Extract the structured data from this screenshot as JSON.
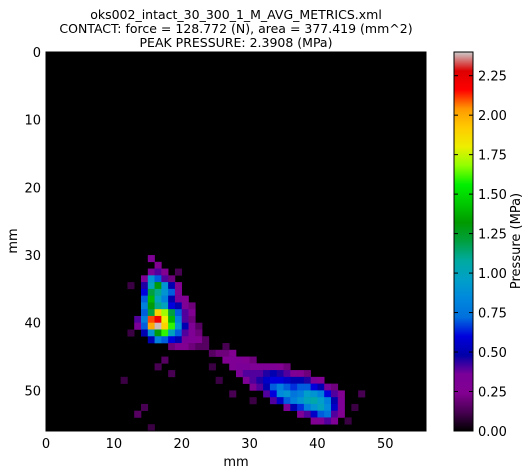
{
  "chart_data": {
    "type": "heatmap",
    "title_lines": [
      "oks002_intact_30_300_1_M_AVG_METRICS.xml",
      "CONTACT: force = 128.772 (N), area = 377.419 (mm^2)",
      "PEAK PRESSURE: 2.3908 (MPa)"
    ],
    "xlabel": "mm",
    "ylabel": "mm",
    "colorbar_label": "Pressure (MPa)",
    "colormap": "nipy_spectral",
    "xlim": [
      0,
      56
    ],
    "ylim": [
      0,
      56
    ],
    "y_inverted": true,
    "x_ticks": [
      0,
      10,
      20,
      30,
      40,
      50
    ],
    "y_ticks": [
      0,
      10,
      20,
      30,
      40,
      50
    ],
    "x_tick_labels": [
      "0",
      "10",
      "20",
      "30",
      "40",
      "50"
    ],
    "y_tick_labels": [
      "0",
      "10",
      "20",
      "30",
      "40",
      "50"
    ],
    "color_range": [
      0,
      2.4
    ],
    "colorbar_ticks": [
      0.0,
      0.25,
      0.5,
      0.75,
      1.0,
      1.25,
      1.5,
      1.75,
      2.0,
      2.25
    ],
    "colorbar_tick_labels": [
      "0.00",
      "0.25",
      "0.50",
      "0.75",
      "1.00",
      "1.25",
      "1.50",
      "1.75",
      "2.00",
      "2.25"
    ],
    "peak_pressure": 2.3908,
    "cells": [
      [
        15,
        30,
        0.3
      ],
      [
        16,
        31,
        0.25
      ],
      [
        15,
        32,
        0.35
      ],
      [
        16,
        32,
        0.4
      ],
      [
        17,
        32,
        0.25
      ],
      [
        14,
        33,
        0.3
      ],
      [
        15,
        33,
        0.9
      ],
      [
        16,
        33,
        0.7
      ],
      [
        17,
        33,
        0.4
      ],
      [
        18,
        33,
        0.2
      ],
      [
        14,
        34,
        0.45
      ],
      [
        15,
        34,
        1.0
      ],
      [
        16,
        34,
        1.3
      ],
      [
        17,
        34,
        0.9
      ],
      [
        18,
        34,
        0.5
      ],
      [
        19,
        34,
        0.25
      ],
      [
        14,
        35,
        0.6
      ],
      [
        15,
        35,
        1.2
      ],
      [
        16,
        35,
        1.1
      ],
      [
        17,
        35,
        0.9
      ],
      [
        18,
        35,
        0.7
      ],
      [
        19,
        35,
        0.3
      ],
      [
        14,
        36,
        0.7
      ],
      [
        15,
        36,
        1.4
      ],
      [
        16,
        36,
        1.0
      ],
      [
        17,
        36,
        0.8
      ],
      [
        18,
        36,
        0.5
      ],
      [
        19,
        36,
        0.35
      ],
      [
        20,
        36,
        0.25
      ],
      [
        14,
        37,
        0.8
      ],
      [
        15,
        37,
        1.3
      ],
      [
        16,
        37,
        1.1
      ],
      [
        17,
        37,
        1.0
      ],
      [
        18,
        37,
        0.6
      ],
      [
        19,
        37,
        0.5
      ],
      [
        20,
        37,
        0.3
      ],
      [
        21,
        37,
        0.2
      ],
      [
        14,
        38,
        0.7
      ],
      [
        15,
        38,
        1.2
      ],
      [
        16,
        38,
        1.9
      ],
      [
        17,
        38,
        1.7
      ],
      [
        18,
        38,
        1.2
      ],
      [
        19,
        38,
        0.7
      ],
      [
        20,
        38,
        0.4
      ],
      [
        21,
        38,
        0.25
      ],
      [
        13,
        39,
        0.4
      ],
      [
        14,
        39,
        0.8
      ],
      [
        15,
        39,
        2.1
      ],
      [
        16,
        39,
        2.2
      ],
      [
        17,
        39,
        1.8
      ],
      [
        18,
        39,
        1.4
      ],
      [
        19,
        39,
        0.8
      ],
      [
        20,
        39,
        0.4
      ],
      [
        21,
        39,
        0.2
      ],
      [
        13,
        40,
        0.35
      ],
      [
        14,
        40,
        0.7
      ],
      [
        15,
        40,
        2.0
      ],
      [
        16,
        40,
        2.39
      ],
      [
        17,
        40,
        1.9
      ],
      [
        18,
        40,
        1.6
      ],
      [
        19,
        40,
        0.9
      ],
      [
        20,
        40,
        0.5
      ],
      [
        21,
        40,
        0.3
      ],
      [
        22,
        40,
        0.15
      ],
      [
        14,
        41,
        0.5
      ],
      [
        15,
        41,
        0.9
      ],
      [
        16,
        41,
        1.3
      ],
      [
        17,
        41,
        1.6
      ],
      [
        18,
        41,
        1.0
      ],
      [
        19,
        41,
        0.7
      ],
      [
        20,
        41,
        0.4
      ],
      [
        21,
        41,
        0.3
      ],
      [
        22,
        41,
        0.2
      ],
      [
        15,
        42,
        0.5
      ],
      [
        16,
        42,
        0.8
      ],
      [
        17,
        42,
        0.7
      ],
      [
        18,
        42,
        0.6
      ],
      [
        19,
        42,
        0.5
      ],
      [
        20,
        42,
        0.35
      ],
      [
        21,
        42,
        0.3
      ],
      [
        22,
        42,
        0.25
      ],
      [
        23,
        42,
        0.15
      ],
      [
        18,
        43,
        0.2
      ],
      [
        19,
        43,
        0.25
      ],
      [
        20,
        43,
        0.25
      ],
      [
        21,
        43,
        0.2
      ],
      [
        22,
        43,
        0.15
      ],
      [
        23,
        43,
        0.15
      ],
      [
        24,
        44,
        0.15
      ],
      [
        25,
        44,
        0.2
      ],
      [
        26,
        44,
        0.2
      ],
      [
        27,
        44,
        0.25
      ],
      [
        26,
        45,
        0.25
      ],
      [
        27,
        45,
        0.3
      ],
      [
        28,
        45,
        0.3
      ],
      [
        29,
        45,
        0.25
      ],
      [
        30,
        45,
        0.2
      ],
      [
        27,
        46,
        0.3
      ],
      [
        28,
        46,
        0.35
      ],
      [
        29,
        46,
        0.35
      ],
      [
        30,
        46,
        0.3
      ],
      [
        31,
        46,
        0.3
      ],
      [
        32,
        46,
        0.3
      ],
      [
        33,
        46,
        0.3
      ],
      [
        34,
        46,
        0.25
      ],
      [
        35,
        46,
        0.2
      ],
      [
        28,
        47,
        0.35
      ],
      [
        29,
        47,
        0.4
      ],
      [
        30,
        47,
        0.4
      ],
      [
        31,
        47,
        0.4
      ],
      [
        32,
        47,
        0.45
      ],
      [
        33,
        47,
        0.5
      ],
      [
        34,
        47,
        0.45
      ],
      [
        35,
        47,
        0.4
      ],
      [
        36,
        47,
        0.3
      ],
      [
        37,
        47,
        0.25
      ],
      [
        38,
        47,
        0.2
      ],
      [
        29,
        48,
        0.3
      ],
      [
        30,
        48,
        0.4
      ],
      [
        31,
        48,
        0.45
      ],
      [
        32,
        48,
        0.55
      ],
      [
        33,
        48,
        0.6
      ],
      [
        34,
        48,
        0.6
      ],
      [
        35,
        48,
        0.55
      ],
      [
        36,
        48,
        0.5
      ],
      [
        37,
        48,
        0.5
      ],
      [
        38,
        48,
        0.45
      ],
      [
        39,
        48,
        0.35
      ],
      [
        40,
        48,
        0.25
      ],
      [
        30,
        49,
        0.3
      ],
      [
        31,
        49,
        0.4
      ],
      [
        32,
        49,
        0.5
      ],
      [
        33,
        49,
        0.7
      ],
      [
        34,
        49,
        0.8
      ],
      [
        35,
        49,
        0.7
      ],
      [
        36,
        49,
        0.65
      ],
      [
        37,
        49,
        0.7
      ],
      [
        38,
        49,
        0.7
      ],
      [
        39,
        49,
        0.6
      ],
      [
        40,
        49,
        0.5
      ],
      [
        41,
        49,
        0.35
      ],
      [
        42,
        49,
        0.2
      ],
      [
        32,
        50,
        0.4
      ],
      [
        33,
        50,
        0.6
      ],
      [
        34,
        50,
        0.85
      ],
      [
        35,
        50,
        0.9
      ],
      [
        36,
        50,
        0.75
      ],
      [
        37,
        50,
        0.8
      ],
      [
        38,
        50,
        0.95
      ],
      [
        39,
        50,
        0.9
      ],
      [
        40,
        50,
        0.8
      ],
      [
        41,
        50,
        0.6
      ],
      [
        42,
        50,
        0.4
      ],
      [
        43,
        50,
        0.25
      ],
      [
        33,
        51,
        0.4
      ],
      [
        34,
        51,
        0.55
      ],
      [
        35,
        51,
        0.7
      ],
      [
        36,
        51,
        0.8
      ],
      [
        37,
        51,
        0.9
      ],
      [
        38,
        51,
        1.0
      ],
      [
        39,
        51,
        1.05
      ],
      [
        40,
        51,
        0.95
      ],
      [
        41,
        51,
        0.8
      ],
      [
        42,
        51,
        0.5
      ],
      [
        43,
        51,
        0.3
      ],
      [
        35,
        52,
        0.35
      ],
      [
        36,
        52,
        0.5
      ],
      [
        37,
        52,
        0.65
      ],
      [
        38,
        52,
        0.8
      ],
      [
        39,
        52,
        0.9
      ],
      [
        40,
        52,
        1.0
      ],
      [
        41,
        52,
        0.85
      ],
      [
        42,
        52,
        0.55
      ],
      [
        43,
        52,
        0.3
      ],
      [
        37,
        53,
        0.3
      ],
      [
        38,
        53,
        0.4
      ],
      [
        39,
        53,
        0.55
      ],
      [
        40,
        53,
        0.7
      ],
      [
        41,
        53,
        0.75
      ],
      [
        42,
        53,
        0.4
      ],
      [
        43,
        53,
        0.25
      ],
      [
        39,
        54,
        0.25
      ],
      [
        40,
        54,
        0.3
      ],
      [
        41,
        54,
        0.4
      ],
      [
        42,
        54,
        0.3
      ],
      [
        17,
        45,
        0.15
      ],
      [
        16,
        46,
        0.12
      ],
      [
        18,
        47,
        0.12
      ],
      [
        12,
        41,
        0.1
      ],
      [
        11,
        48,
        0.1
      ],
      [
        14,
        52,
        0.12
      ],
      [
        13,
        53,
        0.15
      ],
      [
        15,
        55,
        0.1
      ],
      [
        25,
        48,
        0.1
      ],
      [
        27,
        50,
        0.12
      ],
      [
        45,
        52,
        0.1
      ],
      [
        46,
        50,
        0.12
      ],
      [
        12,
        34,
        0.1
      ],
      [
        19,
        32,
        0.12
      ],
      [
        26,
        43,
        0.12
      ],
      [
        24,
        46,
        0.1
      ],
      [
        30,
        51,
        0.1
      ],
      [
        44,
        54,
        0.1
      ]
    ]
  }
}
